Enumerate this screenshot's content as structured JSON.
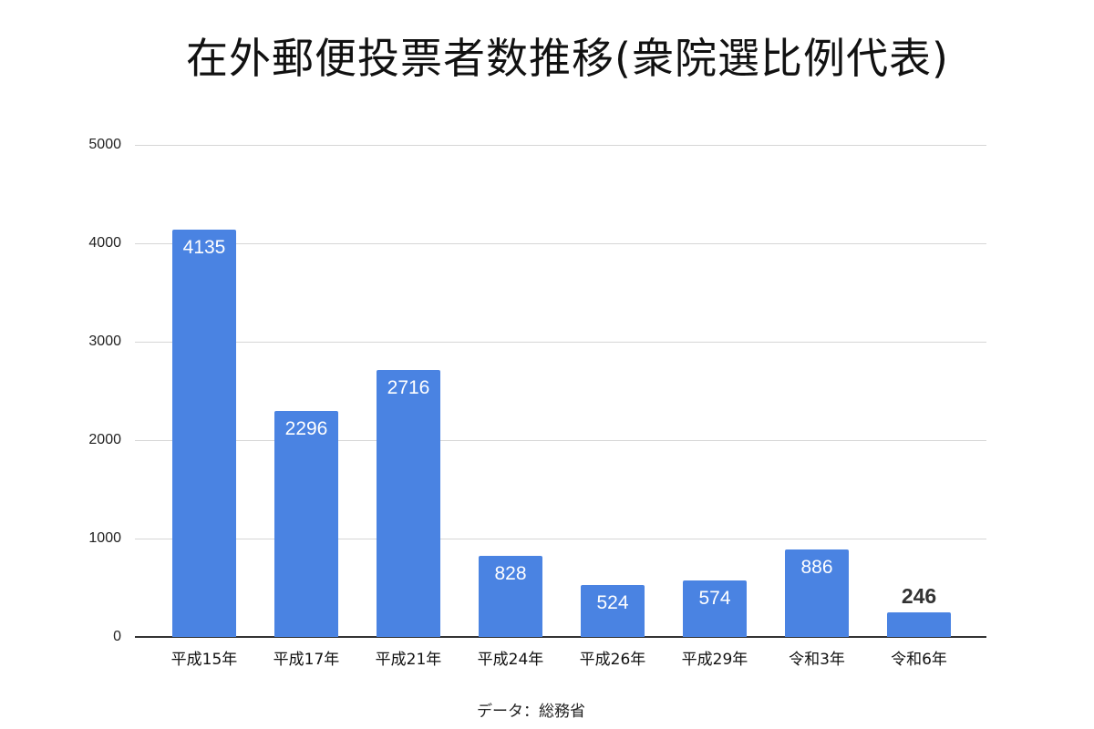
{
  "chart_data": {
    "type": "bar",
    "title": "在外郵便投票者数推移(衆院選比例代表)",
    "xlabel": "",
    "ylabel": "",
    "categories": [
      "平成15年",
      "平成17年",
      "平成21年",
      "平成24年",
      "平成26年",
      "平成29年",
      "令和3年",
      "令和6年"
    ],
    "values": [
      4135,
      2296,
      2716,
      828,
      524,
      574,
      886,
      246
    ],
    "data_labels": [
      "4135",
      "2296",
      "2716",
      "828",
      "524",
      "574",
      "886",
      "246"
    ],
    "ylim": [
      0,
      5000
    ],
    "yticks": [
      "0",
      "1000",
      "2000",
      "3000",
      "4000",
      "5000"
    ],
    "grid": true,
    "legend": null,
    "bar_color": "#4a83e2",
    "annotation": "データ：総務省"
  },
  "title": "在外郵便投票者数推移(衆院選比例代表)",
  "source": "データ：総務省"
}
